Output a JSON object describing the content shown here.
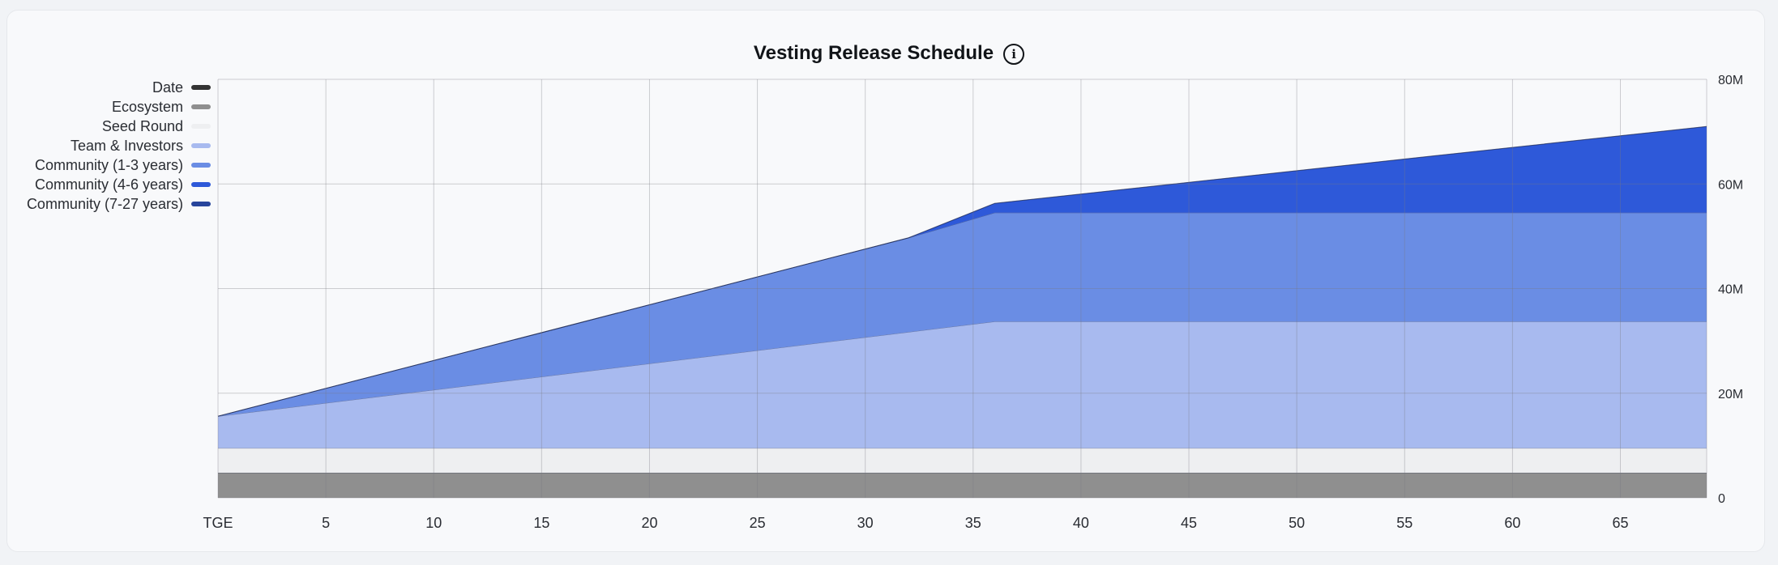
{
  "chart_data": {
    "type": "area",
    "stacked": true,
    "title": "Vesting Release Schedule",
    "xlabel": "",
    "ylabel": "",
    "x_domain": [
      0,
      69
    ],
    "ylim": [
      0,
      80000000
    ],
    "grid": true,
    "legend_position": "left",
    "x_ticks": [
      {
        "value": 0,
        "label": "TGE"
      },
      {
        "value": 5,
        "label": "5"
      },
      {
        "value": 10,
        "label": "10"
      },
      {
        "value": 15,
        "label": "15"
      },
      {
        "value": 20,
        "label": "20"
      },
      {
        "value": 25,
        "label": "25"
      },
      {
        "value": 30,
        "label": "30"
      },
      {
        "value": 35,
        "label": "35"
      },
      {
        "value": 40,
        "label": "40"
      },
      {
        "value": 45,
        "label": "45"
      },
      {
        "value": 50,
        "label": "50"
      },
      {
        "value": 55,
        "label": "55"
      },
      {
        "value": 60,
        "label": "60"
      },
      {
        "value": 65,
        "label": "65"
      }
    ],
    "y_ticks": [
      {
        "value": 0,
        "label": "0"
      },
      {
        "value": 20000000,
        "label": "20M"
      },
      {
        "value": 40000000,
        "label": "40M"
      },
      {
        "value": 60000000,
        "label": "60M"
      },
      {
        "value": 80000000,
        "label": "80M"
      }
    ],
    "series": [
      {
        "name": "Date",
        "color": "#333333",
        "points": []
      },
      {
        "name": "Ecosystem",
        "color": "#8f8f8f",
        "points": [
          [
            0,
            4800000
          ],
          [
            69,
            4800000
          ]
        ]
      },
      {
        "name": "Seed Round",
        "color": "#eeeff1",
        "points": [
          [
            0,
            4700000
          ],
          [
            69,
            4700000
          ]
        ]
      },
      {
        "name": "Team & Investors",
        "color": "#a8baef",
        "points": [
          [
            0,
            6100000
          ],
          [
            36,
            24200000
          ],
          [
            69,
            24200000
          ]
        ]
      },
      {
        "name": "Community (1-3 years)",
        "color": "#6a8de4",
        "points": [
          [
            0,
            0
          ],
          [
            32,
            18000000
          ],
          [
            36,
            20800000
          ],
          [
            69,
            20800000
          ]
        ]
      },
      {
        "name": "Community (4-6 years)",
        "color": "#2e59d9",
        "points": [
          [
            0,
            0
          ],
          [
            32,
            0
          ],
          [
            36,
            1800000
          ],
          [
            69,
            16500000
          ]
        ]
      },
      {
        "name": "Community (7-27 years)",
        "color": "#27459c",
        "points": [
          [
            0,
            0
          ],
          [
            69,
            0
          ]
        ]
      }
    ]
  }
}
